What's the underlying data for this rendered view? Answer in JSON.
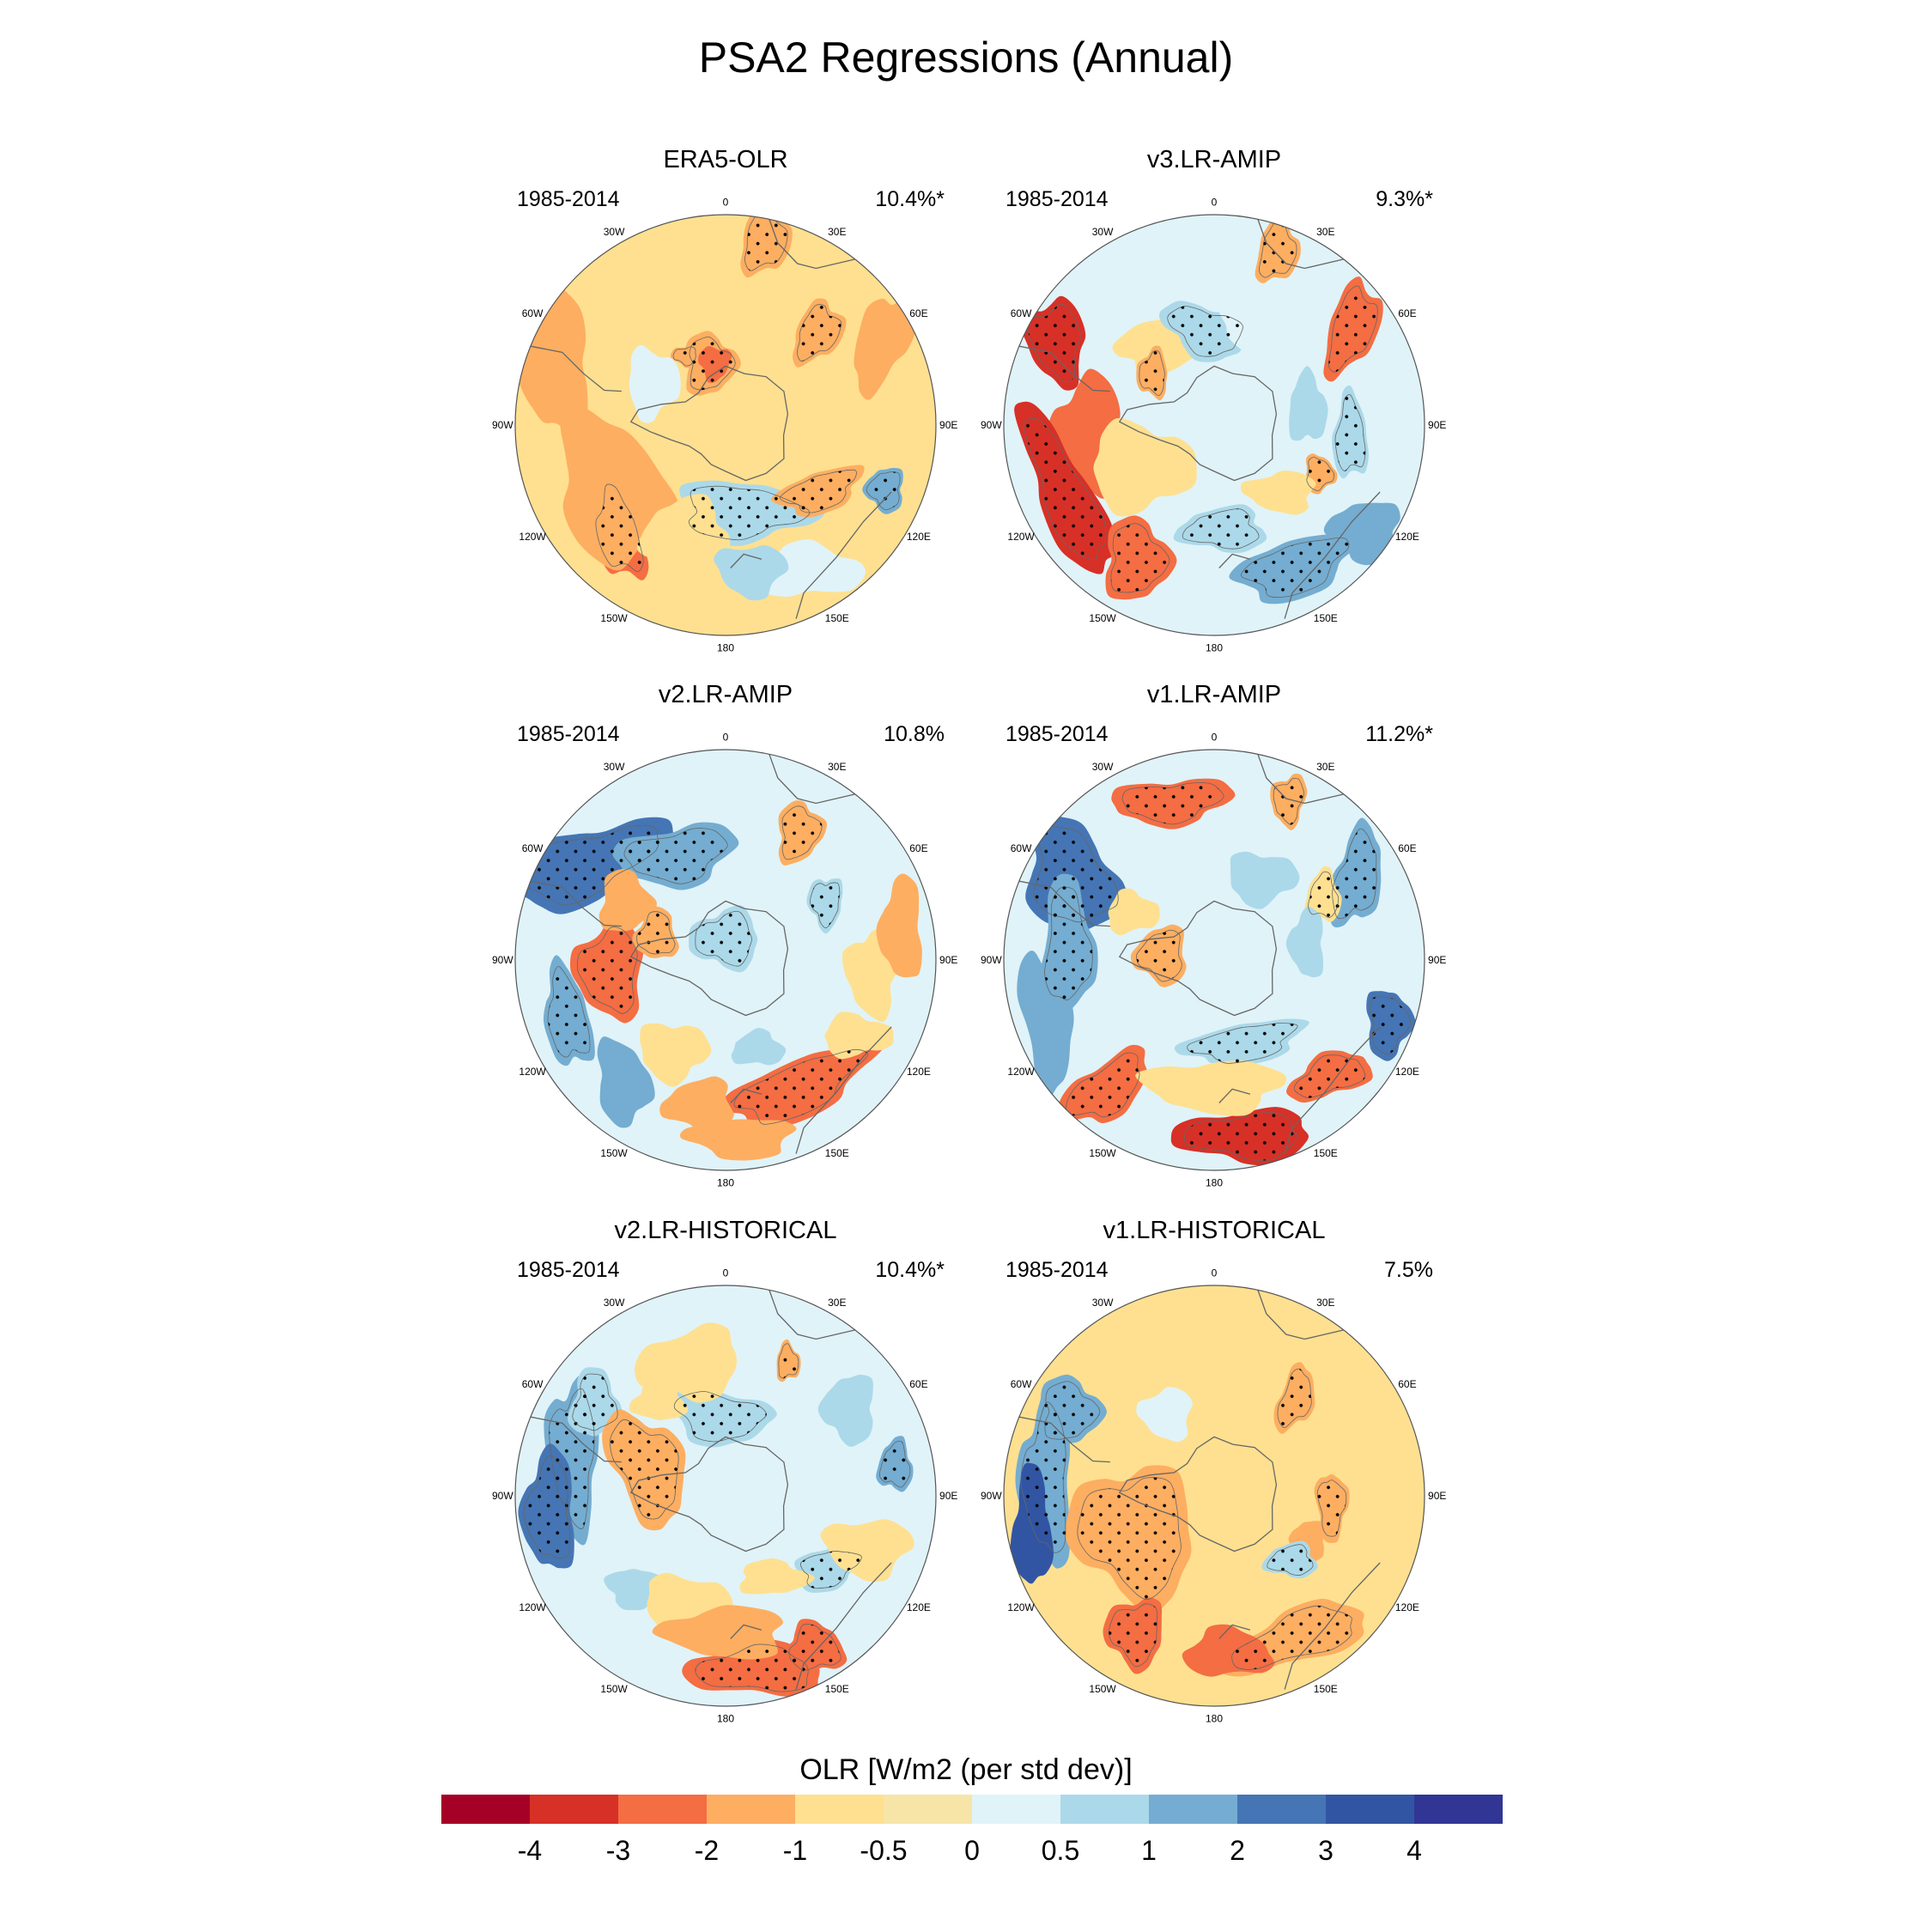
{
  "title": "PSA2 Regressions (Annual)",
  "lon_labels": [
    "0",
    "30E",
    "60E",
    "90E",
    "120E",
    "150E",
    "180",
    "150W",
    "120W",
    "90W",
    "60W",
    "30W"
  ],
  "panels": [
    {
      "title": "ERA5-OLR",
      "period": "1985-2014",
      "pct": "10.4%*"
    },
    {
      "title": "v3.LR-AMIP",
      "period": "1985-2014",
      "pct": "9.3%*"
    },
    {
      "title": "v2.LR-AMIP",
      "period": "1985-2014",
      "pct": "10.8%"
    },
    {
      "title": "v1.LR-AMIP",
      "period": "1985-2014",
      "pct": "11.2%*"
    },
    {
      "title": "v2.LR-HISTORICAL",
      "period": "1985-2014",
      "pct": "10.4%*"
    },
    {
      "title": "v1.LR-HISTORICAL",
      "period": "1985-2014",
      "pct": "7.5%"
    }
  ],
  "colorbar": {
    "title": "OLR [W/m2 (per std dev)]",
    "ticks": [
      "-4",
      "-3",
      "-2",
      "-1",
      "-0.5",
      "0",
      "0.5",
      "1",
      "2",
      "3",
      "4"
    ],
    "colors": [
      "#a50026",
      "#d73027",
      "#f46d43",
      "#fdae61",
      "#fee090",
      "#f7e4a7",
      "#e0f3f8",
      "#abd9e9",
      "#74add1",
      "#4575b4",
      "#3155a3",
      "#313695"
    ]
  }
}
